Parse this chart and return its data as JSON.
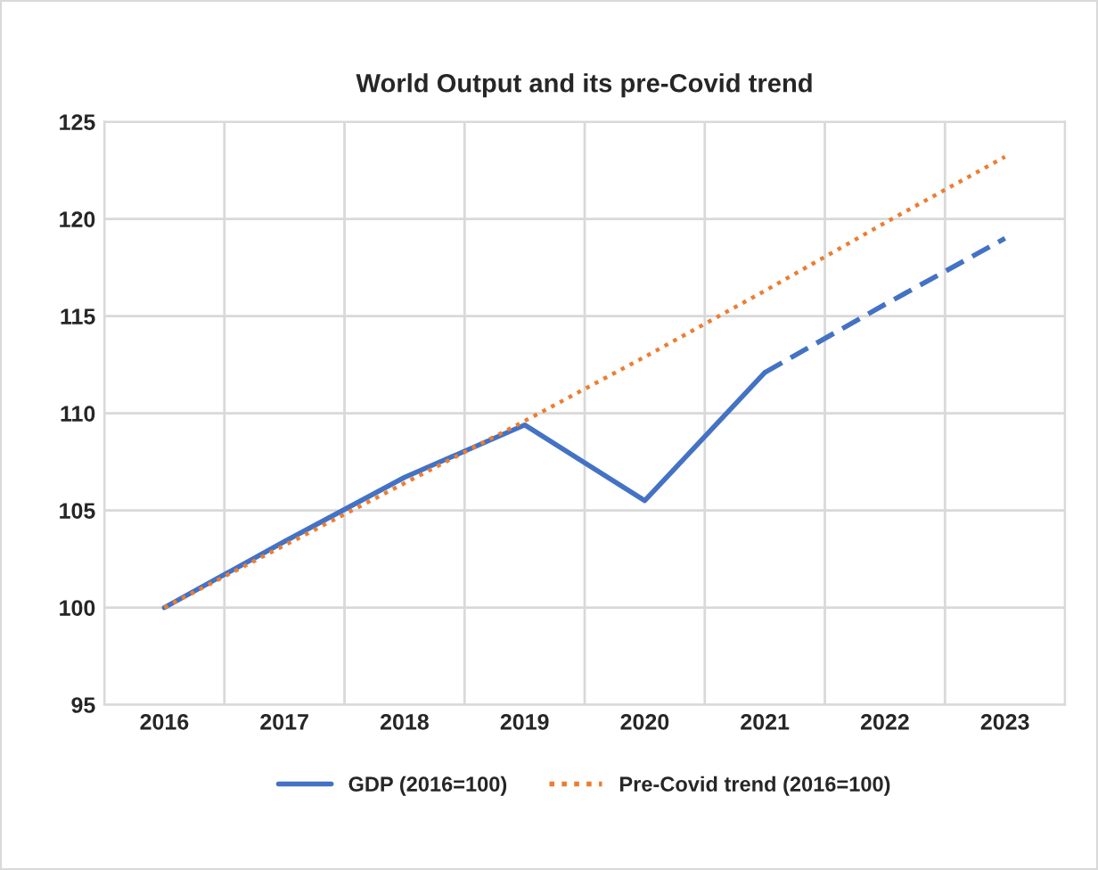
{
  "chart_data": {
    "type": "line",
    "title": "World Output and its pre-Covid trend",
    "categories": [
      "2016",
      "2017",
      "2018",
      "2019",
      "2020",
      "2021",
      "2022",
      "2023"
    ],
    "series": [
      {
        "name": "GDP (2016=100)",
        "color": "#4472c4",
        "line_style": "solid",
        "values": [
          100,
          103.4,
          106.7,
          109.4,
          105.5,
          112.1,
          null,
          null
        ]
      },
      {
        "color": "#4472c4",
        "line_style": "dashed",
        "values": [
          null,
          null,
          null,
          null,
          null,
          112.1,
          115.6,
          119.0
        ]
      },
      {
        "name": "Pre-Covid trend (2016=100)",
        "color": "#ed7d31",
        "line_style": "dotted",
        "values": [
          100,
          103.2,
          106.4,
          109.6,
          112.9,
          116.3,
          119.8,
          123.2
        ]
      }
    ],
    "ylim": [
      95,
      125
    ],
    "yticks": [
      95,
      100,
      105,
      110,
      115,
      120,
      125
    ],
    "grid": true,
    "legend": "bottom",
    "marker": "none"
  }
}
